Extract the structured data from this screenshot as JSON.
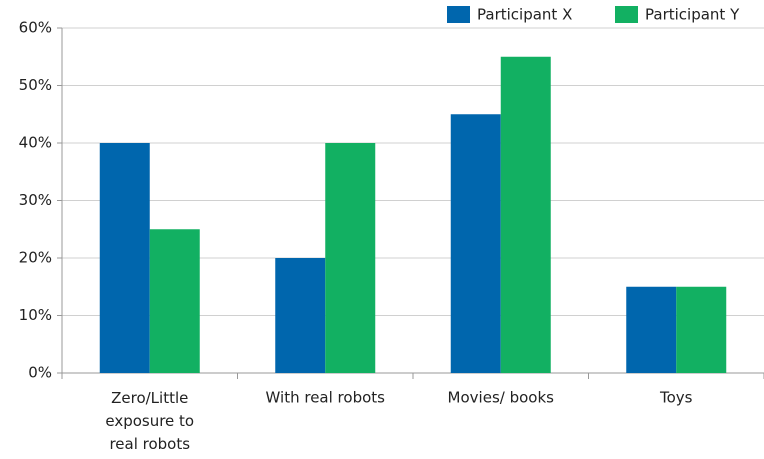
{
  "chart_data": {
    "type": "bar",
    "categories": [
      "Zero/Little exposure to real robots",
      "With real robots",
      "Movies/ books",
      "Toys"
    ],
    "series": [
      {
        "name": "Participant X",
        "color": "#0066ad",
        "values": [
          40,
          20,
          45,
          15
        ]
      },
      {
        "name": "Participant Y",
        "color": "#12b062",
        "values": [
          25,
          40,
          55,
          15
        ]
      }
    ],
    "ylim": [
      0,
      60
    ],
    "yticks": [
      {
        "value": 0,
        "label": "0%"
      },
      {
        "value": 10,
        "label": "10%"
      },
      {
        "value": 20,
        "label": "20%"
      },
      {
        "value": 30,
        "label": "30%"
      },
      {
        "value": 40,
        "label": "40%"
      },
      {
        "value": 50,
        "label": "50%"
      },
      {
        "value": 60,
        "label": "60%"
      }
    ],
    "grid": true,
    "legend": "top-right"
  }
}
